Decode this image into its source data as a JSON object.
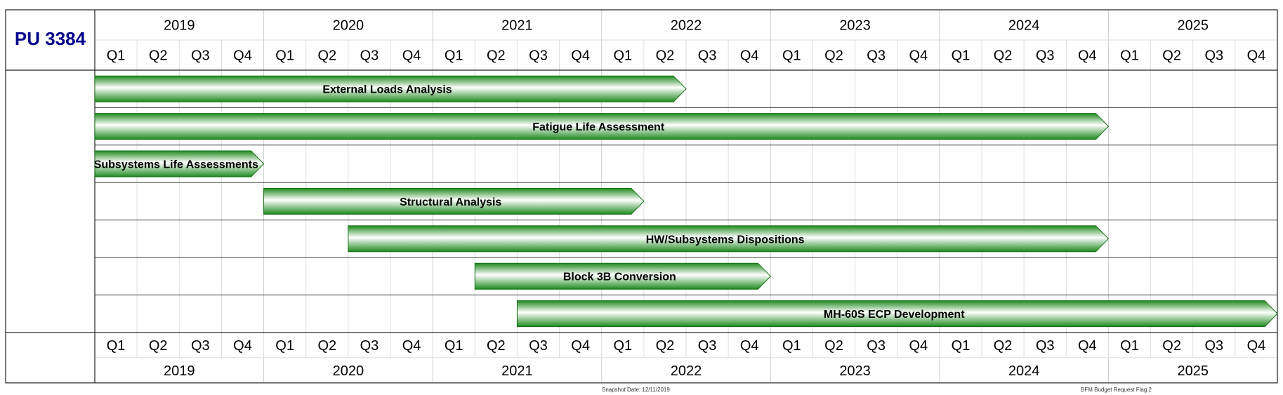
{
  "chart_data": {
    "type": "gantt",
    "title": "PU 3384",
    "years": [
      "2019",
      "2020",
      "2021",
      "2022",
      "2023",
      "2024",
      "2025"
    ],
    "quarters": [
      "Q1",
      "Q2",
      "Q3",
      "Q4"
    ],
    "tasks": [
      {
        "name": "External Loads Analysis",
        "start": "2019 Q1",
        "end": "2022 Q2"
      },
      {
        "name": "Fatigue Life Assessment",
        "start": "2019 Q1",
        "end": "2024 Q4"
      },
      {
        "name": "Subsystems Life Assessments",
        "start": "2019 Q1",
        "end": "2019 Q4"
      },
      {
        "name": "Structural Analysis",
        "start": "2020 Q1",
        "end": "2022 Q1"
      },
      {
        "name": "HW/Subsystems Dispositions",
        "start": "2020 Q3",
        "end": "2024 Q4"
      },
      {
        "name": "Block 3B Conversion",
        "start": "2021 Q2",
        "end": "2022 Q4"
      },
      {
        "name": "MH-60S ECP Development",
        "start": "2021 Q3",
        "end": "2025 Q4"
      }
    ],
    "bar_color": "#1e8a1e"
  },
  "footer": {
    "snapshot": "Snapshot Date: 12/11/2019",
    "flag": "BFM Budget Request Flag 2"
  }
}
